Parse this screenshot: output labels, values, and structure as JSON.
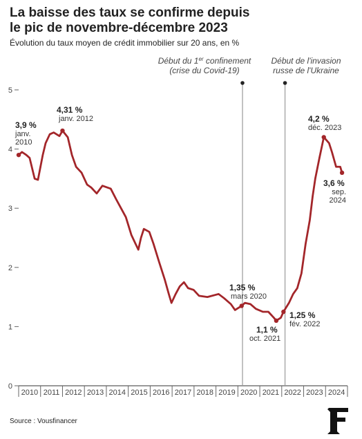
{
  "chart_data": {
    "type": "line",
    "title": [
      "La baisse des taux se confirme depuis",
      "le pic de novembre-décembre 2023"
    ],
    "subtitle": "Évolution du taux moyen de crédit immobilier sur 20 ans, en %",
    "source": "Source : Vousfinancer",
    "xlim": [
      2010,
      2025
    ],
    "xticks": [
      {
        "value": 2010.5,
        "label": "2010"
      },
      {
        "value": 2011.5,
        "label": "2011"
      },
      {
        "value": 2012.5,
        "label": "2012"
      },
      {
        "value": 2013.5,
        "label": "2013"
      },
      {
        "value": 2014.5,
        "label": "2014"
      },
      {
        "value": 2015.5,
        "label": "2015"
      },
      {
        "value": 2016.5,
        "label": "2016"
      },
      {
        "value": 2017.5,
        "label": "2017"
      },
      {
        "value": 2018.5,
        "label": "2018"
      },
      {
        "value": 2019.5,
        "label": "2019"
      },
      {
        "value": 2020.5,
        "label": "2020"
      },
      {
        "value": 2021.5,
        "label": "2021"
      },
      {
        "value": 2022.5,
        "label": "2022"
      },
      {
        "value": 2023.5,
        "label": "2023"
      },
      {
        "value": 2024.5,
        "label": "2024"
      }
    ],
    "ylim": [
      0,
      5
    ],
    "yticks": [
      0,
      1,
      2,
      3,
      4,
      5
    ],
    "series": [
      {
        "name": "Taux moyen sur 20 ans",
        "color": "#a3262a",
        "x": [
          2010.0,
          2010.15,
          2010.35,
          2010.5,
          2010.73,
          2010.88,
          2011.1,
          2011.23,
          2011.42,
          2011.6,
          2011.86,
          2012.0,
          2012.24,
          2012.43,
          2012.62,
          2012.87,
          2013.12,
          2013.31,
          2013.56,
          2013.82,
          2014.2,
          2014.45,
          2014.67,
          2014.89,
          2015.14,
          2015.33,
          2015.46,
          2015.58,
          2015.71,
          2015.96,
          2016.15,
          2016.4,
          2016.66,
          2016.85,
          2016.97,
          2017.16,
          2017.35,
          2017.54,
          2017.73,
          2017.98,
          2018.23,
          2018.61,
          2019.12,
          2019.37,
          2019.68,
          2019.87,
          2020.17,
          2020.32,
          2020.57,
          2020.82,
          2021.14,
          2021.39,
          2021.64,
          2021.75,
          2021.96,
          2022.08,
          2022.33,
          2022.52,
          2022.71,
          2022.9,
          2023.09,
          2023.28,
          2023.41,
          2023.53,
          2023.72,
          2023.92,
          2024.16,
          2024.29,
          2024.48,
          2024.67,
          2024.75
        ],
        "values": [
          3.9,
          3.95,
          3.9,
          3.85,
          3.5,
          3.48,
          3.9,
          4.1,
          4.25,
          4.28,
          4.22,
          4.31,
          4.2,
          3.9,
          3.7,
          3.6,
          3.4,
          3.35,
          3.25,
          3.38,
          3.33,
          3.15,
          3.0,
          2.85,
          2.55,
          2.4,
          2.3,
          2.5,
          2.65,
          2.6,
          2.4,
          2.1,
          1.8,
          1.55,
          1.4,
          1.55,
          1.68,
          1.75,
          1.65,
          1.62,
          1.52,
          1.5,
          1.55,
          1.48,
          1.38,
          1.28,
          1.35,
          1.4,
          1.38,
          1.3,
          1.25,
          1.25,
          1.15,
          1.1,
          1.15,
          1.25,
          1.4,
          1.55,
          1.65,
          1.9,
          2.4,
          2.8,
          3.2,
          3.5,
          3.85,
          4.2,
          4.1,
          3.95,
          3.7,
          3.7,
          3.6
        ]
      }
    ],
    "annotations": [
      {
        "x": 2010.0,
        "value": 3.9,
        "label": "3,9 %",
        "date": [
          "janv.",
          "2010"
        ]
      },
      {
        "x": 2012.0,
        "value": 4.31,
        "label": "4,31 %",
        "date": [
          "janv. 2012"
        ]
      },
      {
        "x": 2020.17,
        "value": 1.35,
        "label": "1,35 %",
        "date": [
          "mars 2020"
        ]
      },
      {
        "x": 2021.75,
        "value": 1.1,
        "label": "1,1 %",
        "date": [
          "oct. 2021"
        ]
      },
      {
        "x": 2022.08,
        "value": 1.25,
        "label": "1,25 %",
        "date": [
          "fév. 2022"
        ]
      },
      {
        "x": 2023.92,
        "value": 4.2,
        "label": "4,2 %",
        "date": [
          "déc. 2023"
        ]
      },
      {
        "x": 2024.75,
        "value": 3.6,
        "label": "3,6 %",
        "date": [
          "sep.",
          "2024"
        ]
      }
    ],
    "events": [
      {
        "x": 2020.21,
        "lines": [
          [
            "Début du 1",
            "er",
            " confinement"
          ],
          [
            "(crise du Covid-19)"
          ]
        ]
      },
      {
        "x": 2022.15,
        "lines": [
          [
            "Début de l'invasion"
          ],
          [
            "russe de l'Ukraine"
          ]
        ]
      }
    ]
  }
}
